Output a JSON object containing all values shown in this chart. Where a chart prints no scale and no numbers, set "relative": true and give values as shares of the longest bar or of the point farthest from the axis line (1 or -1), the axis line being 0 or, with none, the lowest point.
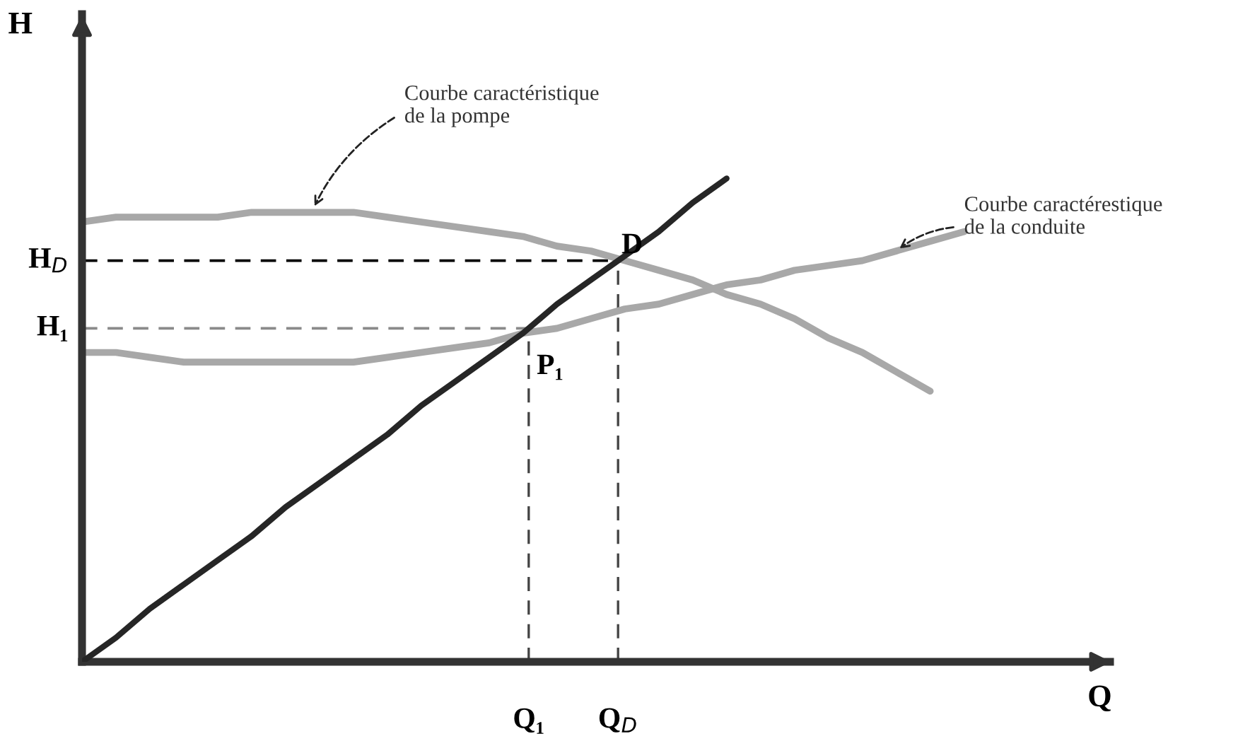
{
  "chart_data": {
    "type": "line",
    "relative": true,
    "xlabel": "Q",
    "ylabel": "H",
    "categories": [
      null,
      null,
      null,
      null,
      null,
      null,
      null,
      null,
      null,
      null,
      null,
      null,
      null,
      null,
      null,
      null,
      null,
      null,
      null,
      null,
      null,
      null,
      null,
      null,
      null,
      null,
      null,
      null,
      null,
      null
    ],
    "series": [
      {
        "color": "#262626",
        "values": [
          0,
          0.05,
          0.11,
          0.16,
          0.21,
          0.26,
          0.32,
          0.37,
          0.42,
          0.47,
          0.53,
          0.58,
          0.63,
          0.68,
          0.74,
          0.79,
          0.84,
          0.89,
          0.95,
          1,
          null,
          null,
          null,
          null,
          null,
          null,
          null,
          null,
          null,
          null
        ]
      },
      {
        "color": "#a8a8a8",
        "values": [
          0.91,
          0.92,
          0.92,
          0.92,
          0.92,
          0.93,
          0.93,
          0.93,
          0.93,
          0.92,
          0.91,
          0.9,
          0.89,
          0.88,
          0.86,
          0.85,
          0.83,
          0.81,
          0.79,
          0.76,
          0.74,
          0.71,
          0.67,
          0.64,
          0.6,
          0.56,
          null,
          null,
          null,
          null
        ]
      },
      {
        "color": "#a8a8a8",
        "values": [
          0.64,
          0.64,
          0.63,
          0.62,
          0.62,
          0.62,
          0.62,
          0.62,
          0.62,
          0.63,
          0.64,
          0.65,
          0.66,
          0.68,
          0.69,
          0.71,
          0.73,
          0.74,
          0.76,
          0.78,
          0.79,
          0.81,
          0.82,
          0.83,
          0.85,
          0.87,
          0.89,
          null,
          null,
          null
        ]
      }
    ],
    "ref_lines": [
      {
        "axis": "y",
        "value": 0.83,
        "label": "H$_{D}$",
        "color": "#000000",
        "line_style": "dashed"
      },
      {
        "axis": "y",
        "value": 0.69,
        "label": "H₁",
        "color": "#8a8a8a",
        "line_style": "dashed"
      }
    ],
    "annotations": [
      "Courbe caractéristique\nde la pompe",
      "Courbe caractérestique\nde la conduite",
      "D",
      "P₁",
      "Q$_{D}$",
      "Q₁"
    ],
    "legend": false,
    "grid": false
  }
}
